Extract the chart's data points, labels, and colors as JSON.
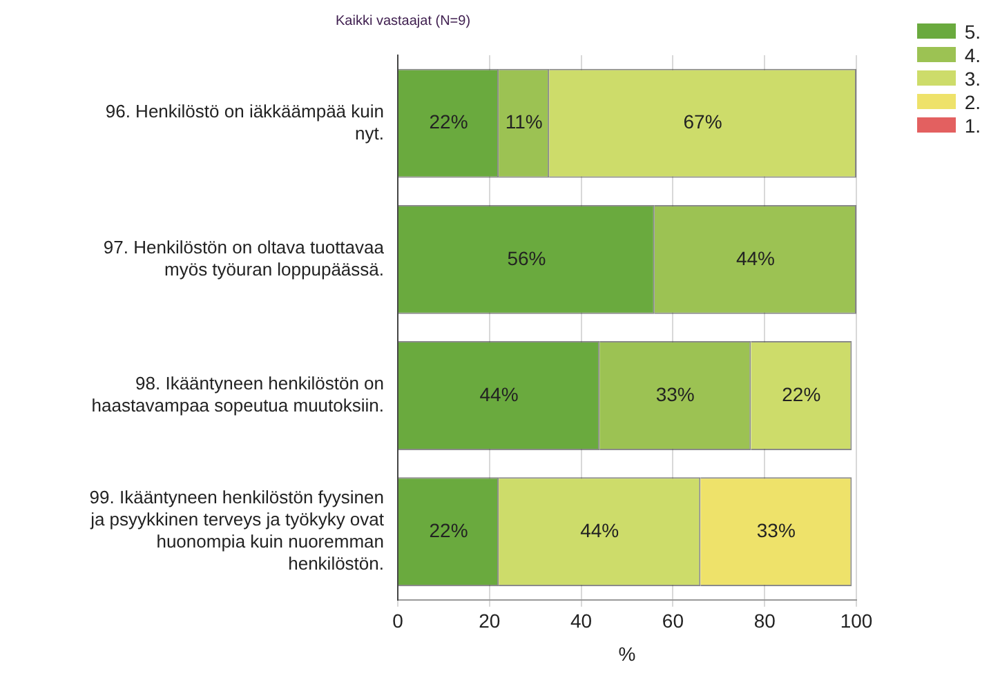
{
  "chart_data": {
    "type": "bar",
    "orientation": "horizontal",
    "stacked": true,
    "title": "Kaikki vastaajat (N=9)",
    "xlabel": "%",
    "categories": [
      "96. Henkilöstö on iäkkäämpää kuin nyt.",
      "97. Henkilöstön on oltava tuottavaa myös työuran loppupäässä.",
      "98. Ikääntyneen henkilöstön on haastavampaa sopeutua muutoksiin.",
      "99. Ikääntyneen henkilöstön fyysinen ja psyykkinen terveys ja työkyky ovat huonompia kuin nuoremman henkilöstön."
    ],
    "series": [
      {
        "name": "5.",
        "color": "#6aaa3e",
        "values": [
          22,
          56,
          44,
          22
        ],
        "value_labels": [
          "22%",
          "56%",
          "44%",
          "22%"
        ]
      },
      {
        "name": "4.",
        "color": "#9cc253",
        "values": [
          11,
          44,
          33,
          null
        ],
        "value_labels": [
          "11%",
          "44%",
          "33%",
          null
        ]
      },
      {
        "name": "3.",
        "color": "#cddc6a",
        "values": [
          67,
          null,
          22,
          44
        ],
        "value_labels": [
          "67%",
          null,
          "22%",
          "44%"
        ]
      },
      {
        "name": "2.",
        "color": "#eee26a",
        "values": [
          null,
          null,
          null,
          33
        ],
        "value_labels": [
          null,
          null,
          null,
          "33%"
        ]
      },
      {
        "name": "1.",
        "color": "#e36060",
        "values": [
          null,
          null,
          null,
          null
        ]
      }
    ],
    "xlim": [
      0,
      100
    ],
    "xticks": [
      0,
      20,
      40,
      60,
      80,
      100
    ],
    "grid": "x",
    "legend": "top right"
  }
}
